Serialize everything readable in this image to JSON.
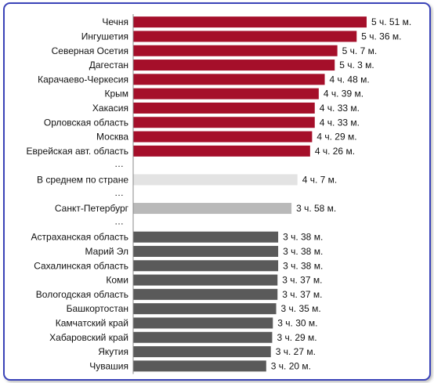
{
  "chart_data": {
    "type": "bar",
    "orientation": "horizontal",
    "unit_note": "values in minutes; labels shown as hours and minutes",
    "rows": [
      {
        "kind": "bar",
        "category": "Чечня",
        "value": 351,
        "value_label": "5 ч. 51 м.",
        "color": "#a50f2a"
      },
      {
        "kind": "bar",
        "category": "Ингушетия",
        "value": 336,
        "value_label": "5 ч. 36 м.",
        "color": "#a50f2a"
      },
      {
        "kind": "bar",
        "category": "Северная Осетия",
        "value": 307,
        "value_label": "5 ч. 7 м.",
        "color": "#a50f2a"
      },
      {
        "kind": "bar",
        "category": "Дагестан",
        "value": 303,
        "value_label": "5 ч. 3 м.",
        "color": "#a50f2a"
      },
      {
        "kind": "bar",
        "category": "Карачаево-Черкесия",
        "value": 288,
        "value_label": "4 ч. 48 м.",
        "color": "#a50f2a"
      },
      {
        "kind": "bar",
        "category": "Крым",
        "value": 279,
        "value_label": "4 ч. 39 м.",
        "color": "#a50f2a"
      },
      {
        "kind": "bar",
        "category": "Хакасия",
        "value": 273,
        "value_label": "4 ч. 33 м.",
        "color": "#a50f2a"
      },
      {
        "kind": "bar",
        "category": "Орловская область",
        "value": 273,
        "value_label": "4 ч. 33 м.",
        "color": "#a50f2a"
      },
      {
        "kind": "bar",
        "category": "Москва",
        "value": 269,
        "value_label": "4 ч. 29 м.",
        "color": "#a50f2a"
      },
      {
        "kind": "bar",
        "category": "Еврейская авт. область",
        "value": 266,
        "value_label": "4 ч. 26 м.",
        "color": "#a50f2a"
      },
      {
        "kind": "ellipsis",
        "label": "…"
      },
      {
        "kind": "bar",
        "category": "В среднем по стране",
        "value": 247,
        "value_label": "4 ч. 7 м.",
        "color": "#e3e3e3"
      },
      {
        "kind": "ellipsis",
        "label": "…"
      },
      {
        "kind": "bar",
        "category": "Санкт-Петербург",
        "value": 238,
        "value_label": "3 ч. 58 м.",
        "color": "#b9b9b9"
      },
      {
        "kind": "ellipsis",
        "label": "…"
      },
      {
        "kind": "bar",
        "category": "Астраханская область",
        "value": 218,
        "value_label": "3 ч. 38 м.",
        "color": "#5a5a5a"
      },
      {
        "kind": "bar",
        "category": "Марий Эл",
        "value": 218,
        "value_label": "3 ч. 38 м.",
        "color": "#5a5a5a"
      },
      {
        "kind": "bar",
        "category": "Сахалинская область",
        "value": 218,
        "value_label": "3 ч. 38 м.",
        "color": "#5a5a5a"
      },
      {
        "kind": "bar",
        "category": "Коми",
        "value": 217,
        "value_label": "3 ч. 37 м.",
        "color": "#5a5a5a"
      },
      {
        "kind": "bar",
        "category": "Вологодская область",
        "value": 217,
        "value_label": "3 ч. 37 м.",
        "color": "#5a5a5a"
      },
      {
        "kind": "bar",
        "category": "Башкортостан",
        "value": 215,
        "value_label": "3 ч. 35 м.",
        "color": "#5a5a5a"
      },
      {
        "kind": "bar",
        "category": "Камчатский край",
        "value": 210,
        "value_label": "3 ч. 30 м.",
        "color": "#5a5a5a"
      },
      {
        "kind": "bar",
        "category": "Хабаровский край",
        "value": 209,
        "value_label": "3 ч. 29 м.",
        "color": "#5a5a5a"
      },
      {
        "kind": "bar",
        "category": "Якутия",
        "value": 207,
        "value_label": "3 ч. 27 м.",
        "color": "#5a5a5a"
      },
      {
        "kind": "bar",
        "category": "Чувашия",
        "value": 200,
        "value_label": "3 ч. 20 м.",
        "color": "#5a5a5a"
      }
    ],
    "axis_color": "#888888",
    "grid": false,
    "legend": "none",
    "title": "",
    "xlabel": "",
    "ylabel": ""
  }
}
